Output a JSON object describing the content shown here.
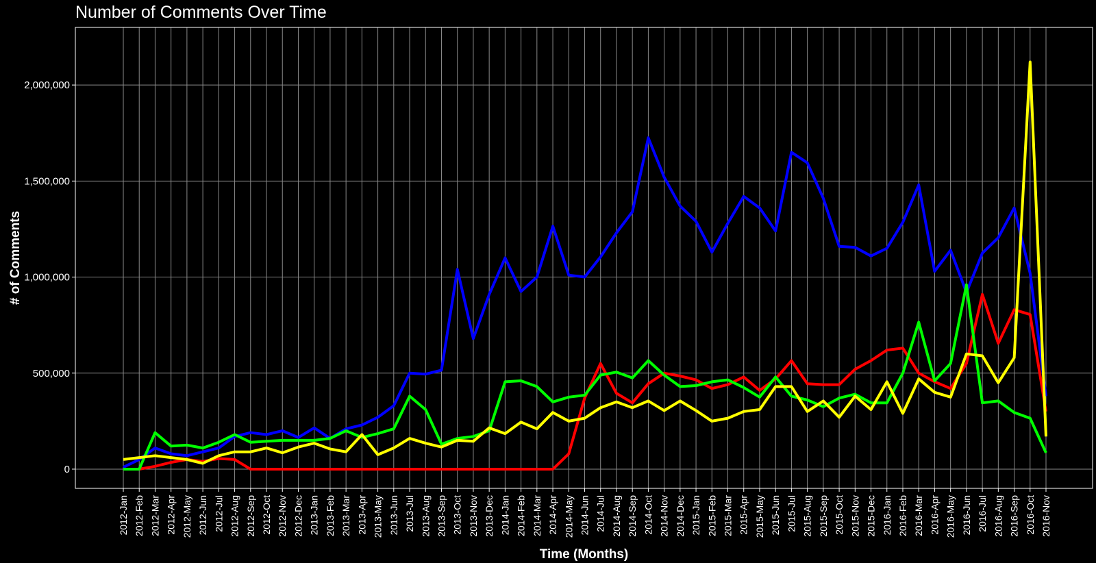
{
  "chart_data": {
    "type": "line",
    "title": "Number of Comments Over Time",
    "xlabel": "Time (Months)",
    "ylabel": "# of Comments",
    "ylim": [
      -100000,
      2300000
    ],
    "yticks": [
      0,
      500000,
      1000000,
      1500000,
      2000000
    ],
    "ytick_labels": [
      "0",
      "500,000",
      "1,000,000",
      "1,500,000",
      "2,000,000"
    ],
    "grid": true,
    "background": "#000000",
    "categories": [
      "2012-Jan",
      "2012-Feb",
      "2012-Mar",
      "2012-Apr",
      "2012-May",
      "2012-Jun",
      "2012-Jul",
      "2012-Aug",
      "2012-Sep",
      "2012-Oct",
      "2012-Nov",
      "2012-Dec",
      "2013-Jan",
      "2013-Feb",
      "2013-Mar",
      "2013-Apr",
      "2013-May",
      "2013-Jun",
      "2013-Jul",
      "2013-Aug",
      "2013-Sep",
      "2013-Oct",
      "2013-Nov",
      "2013-Dec",
      "2014-Jan",
      "2014-Feb",
      "2014-Mar",
      "2014-Apr",
      "2014-May",
      "2014-Jun",
      "2014-Jul",
      "2014-Aug",
      "2014-Sep",
      "2014-Oct",
      "2014-Nov",
      "2014-Dec",
      "2015-Jan",
      "2015-Feb",
      "2015-Mar",
      "2015-Apr",
      "2015-May",
      "2015-Jun",
      "2015-Jul",
      "2015-Aug",
      "2015-Sep",
      "2015-Oct",
      "2015-Nov",
      "2015-Dec",
      "2016-Jan",
      "2016-Feb",
      "2016-Mar",
      "2016-Apr",
      "2016-May",
      "2016-Jun",
      "2016-Jul",
      "2016-Aug",
      "2016-Sep",
      "2016-Oct",
      "2016-Nov"
    ],
    "series": [
      {
        "color": "#0000ff",
        "values": [
          10000,
          50000,
          110000,
          80000,
          70000,
          90000,
          110000,
          170000,
          190000,
          180000,
          200000,
          165000,
          215000,
          160000,
          210000,
          230000,
          270000,
          330000,
          500000,
          495000,
          515000,
          1040000,
          680000,
          910000,
          1100000,
          925000,
          1000000,
          1265000,
          1010000,
          1000000,
          1105000,
          1230000,
          1340000,
          1725000,
          1520000,
          1370000,
          1290000,
          1130000,
          1280000,
          1420000,
          1360000,
          1240000,
          1650000,
          1595000,
          1410000,
          1160000,
          1155000,
          1110000,
          1150000,
          1285000,
          1480000,
          1030000,
          1140000,
          920000,
          1125000,
          1205000,
          1360000,
          1020000,
          380000
        ]
      },
      {
        "color": "#ff0000",
        "values": [
          0,
          0,
          15000,
          35000,
          50000,
          40000,
          55000,
          50000,
          0,
          0,
          0,
          0,
          0,
          0,
          0,
          0,
          0,
          0,
          0,
          0,
          0,
          0,
          0,
          0,
          0,
          0,
          0,
          0,
          80000,
          370000,
          550000,
          395000,
          345000,
          445000,
          500000,
          485000,
          465000,
          420000,
          440000,
          480000,
          410000,
          470000,
          565000,
          445000,
          440000,
          440000,
          520000,
          565000,
          620000,
          630000,
          500000,
          455000,
          420000,
          550000,
          910000,
          655000,
          830000,
          805000,
          300000
        ]
      },
      {
        "color": "#00ff00",
        "values": [
          0,
          0,
          190000,
          120000,
          125000,
          110000,
          140000,
          180000,
          140000,
          145000,
          150000,
          150000,
          150000,
          160000,
          200000,
          165000,
          185000,
          210000,
          380000,
          310000,
          130000,
          160000,
          170000,
          200000,
          455000,
          460000,
          430000,
          350000,
          375000,
          385000,
          490000,
          505000,
          475000,
          565000,
          490000,
          430000,
          435000,
          455000,
          465000,
          425000,
          375000,
          480000,
          380000,
          360000,
          325000,
          370000,
          390000,
          345000,
          345000,
          500000,
          765000,
          460000,
          550000,
          960000,
          345000,
          355000,
          295000,
          265000,
          85000
        ]
      },
      {
        "color": "#ffff00",
        "values": [
          50000,
          60000,
          70000,
          60000,
          50000,
          30000,
          70000,
          90000,
          90000,
          110000,
          85000,
          115000,
          135000,
          105000,
          90000,
          180000,
          75000,
          110000,
          160000,
          135000,
          115000,
          150000,
          145000,
          215000,
          185000,
          245000,
          210000,
          295000,
          250000,
          265000,
          320000,
          350000,
          320000,
          355000,
          305000,
          355000,
          305000,
          250000,
          265000,
          300000,
          310000,
          430000,
          430000,
          300000,
          355000,
          270000,
          380000,
          310000,
          455000,
          290000,
          470000,
          400000,
          375000,
          600000,
          590000,
          450000,
          580000,
          2120000,
          170000
        ]
      }
    ]
  }
}
